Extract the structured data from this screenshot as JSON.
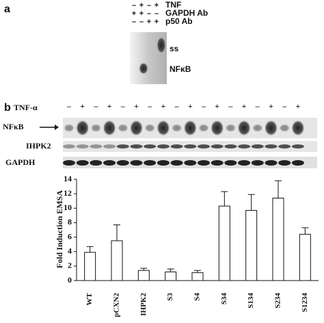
{
  "panel_a": {
    "label": "a",
    "rows": [
      {
        "signs": [
          "–",
          "+",
          "–",
          "+"
        ],
        "label": "TNF"
      },
      {
        "signs": [
          "+",
          "+",
          "–",
          "–"
        ],
        "label": "GAPDH Ab"
      },
      {
        "signs": [
          "–",
          "–",
          "+",
          "+"
        ],
        "label": "p50 Ab"
      }
    ],
    "band_labels": [
      "ss",
      "NFκB"
    ]
  },
  "panel_b": {
    "label": "b",
    "treatment_label": "TNF-α",
    "signs": [
      "–",
      "+",
      "–",
      "+",
      "–",
      "+",
      "–",
      "+",
      "–",
      "+",
      "–",
      "+",
      "–",
      "+",
      "–",
      "+",
      "–",
      "+"
    ],
    "blot_labels": [
      "NFκB",
      "IHPK2",
      "GAPDH"
    ]
  },
  "chart_data": {
    "type": "bar",
    "ylabel": "Fold Induction EMSA",
    "categories": [
      "WT",
      "pCXN2",
      "IHPK2",
      "S3",
      "S4",
      "S34",
      "S134",
      "S234",
      "S1234"
    ],
    "values": [
      3.9,
      5.5,
      1.4,
      1.2,
      1.1,
      10.3,
      9.7,
      11.4,
      6.4
    ],
    "errors": [
      0.8,
      2.2,
      0.3,
      0.4,
      0.3,
      2.0,
      2.2,
      2.4,
      0.9
    ],
    "color": "#ffffff",
    "ylim": [
      0,
      14
    ],
    "yticks": [
      0,
      2,
      4,
      6,
      8,
      10,
      12,
      14
    ]
  }
}
